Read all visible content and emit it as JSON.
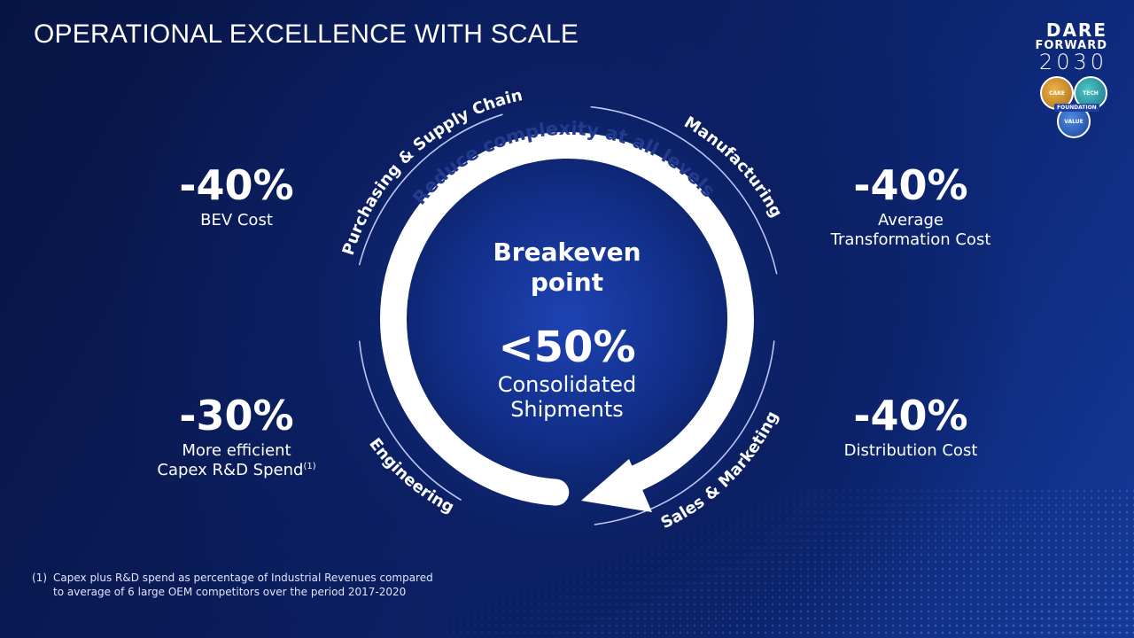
{
  "title": "OPERATIONAL EXCELLENCE WITH SCALE",
  "brand": {
    "line1": "DARE",
    "line2": "FORWARD",
    "line3": "2030",
    "badges": [
      "CARE",
      "TECH",
      "VALUE"
    ],
    "foundation": "FOUNDATION"
  },
  "stats": {
    "top_left": {
      "value": "-40%",
      "label": [
        "BEV Cost"
      ]
    },
    "top_right": {
      "value": "-40%",
      "label": [
        "Average",
        "Transformation Cost"
      ]
    },
    "bottom_left": {
      "value": "-30%",
      "label": [
        "More efficient",
        "Capex R&D Spend"
      ],
      "footnote_mark": "(1)"
    },
    "bottom_right": {
      "value": "-40%",
      "label": [
        "Distribution Cost"
      ]
    }
  },
  "cycle": {
    "arrow_text": "Reduce complexity at all levels",
    "segments": {
      "top_left": "Purchasing & Supply Chain",
      "top_right": "Manufacturing",
      "bottom_left": "Engineering",
      "bottom_right": "Sales & Marketing"
    }
  },
  "center": {
    "title": [
      "Breakeven",
      "point"
    ],
    "value": "<50%",
    "label": [
      "Consolidated",
      "Shipments"
    ]
  },
  "footnote": {
    "mark": "(1)",
    "lines": [
      "Capex plus R&D spend as percentage of Industrial Revenues compared",
      "to average of 6 large OEM competitors over the period 2017-2020"
    ]
  },
  "colors": {
    "background": "#0b1d5c",
    "arrow": "#ffffff",
    "arrow_text": "#233b8f",
    "text": "#ffffff"
  }
}
